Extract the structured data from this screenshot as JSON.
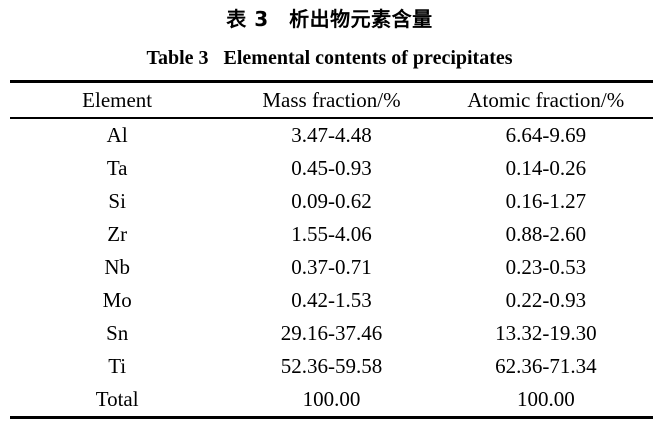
{
  "captions": {
    "chinese": "表 3　析出物元素含量",
    "english": "Table 3   Elemental contents of precipitates"
  },
  "table": {
    "headers": [
      "Element",
      "Mass fraction/%",
      "Atomic fraction/%"
    ],
    "rows": [
      [
        "Al",
        "3.47-4.48",
        "6.64-9.69"
      ],
      [
        "Ta",
        "0.45-0.93",
        "0.14-0.26"
      ],
      [
        "Si",
        "0.09-0.62",
        "0.16-1.27"
      ],
      [
        "Zr",
        "1.55-4.06",
        "0.88-2.60"
      ],
      [
        "Nb",
        "0.37-0.71",
        "0.23-0.53"
      ],
      [
        "Mo",
        "0.42-1.53",
        "0.22-0.93"
      ],
      [
        "Sn",
        "29.16-37.46",
        "13.32-19.30"
      ],
      [
        "Ti",
        "52.36-59.58",
        "62.36-71.34"
      ],
      [
        "Total",
        "100.00",
        "100.00"
      ]
    ]
  },
  "colors": {
    "background": "#ffffff",
    "text": "#000000",
    "rule": "#000000"
  },
  "chart_data": {
    "type": "table",
    "title": "Table 3   Elemental contents of precipitates",
    "columns": [
      "Element",
      "Mass fraction/%",
      "Atomic fraction/%"
    ],
    "rows": [
      [
        "Al",
        "3.47-4.48",
        "6.64-9.69"
      ],
      [
        "Ta",
        "0.45-0.93",
        "0.14-0.26"
      ],
      [
        "Si",
        "0.09-0.62",
        "0.16-1.27"
      ],
      [
        "Zr",
        "1.55-4.06",
        "0.88-2.60"
      ],
      [
        "Nb",
        "0.37-0.71",
        "0.23-0.53"
      ],
      [
        "Mo",
        "0.42-1.53",
        "0.22-0.93"
      ],
      [
        "Sn",
        "29.16-37.46",
        "13.32-19.30"
      ],
      [
        "Ti",
        "52.36-59.58",
        "62.36-71.34"
      ],
      [
        "Total",
        "100.00",
        "100.00"
      ]
    ]
  }
}
